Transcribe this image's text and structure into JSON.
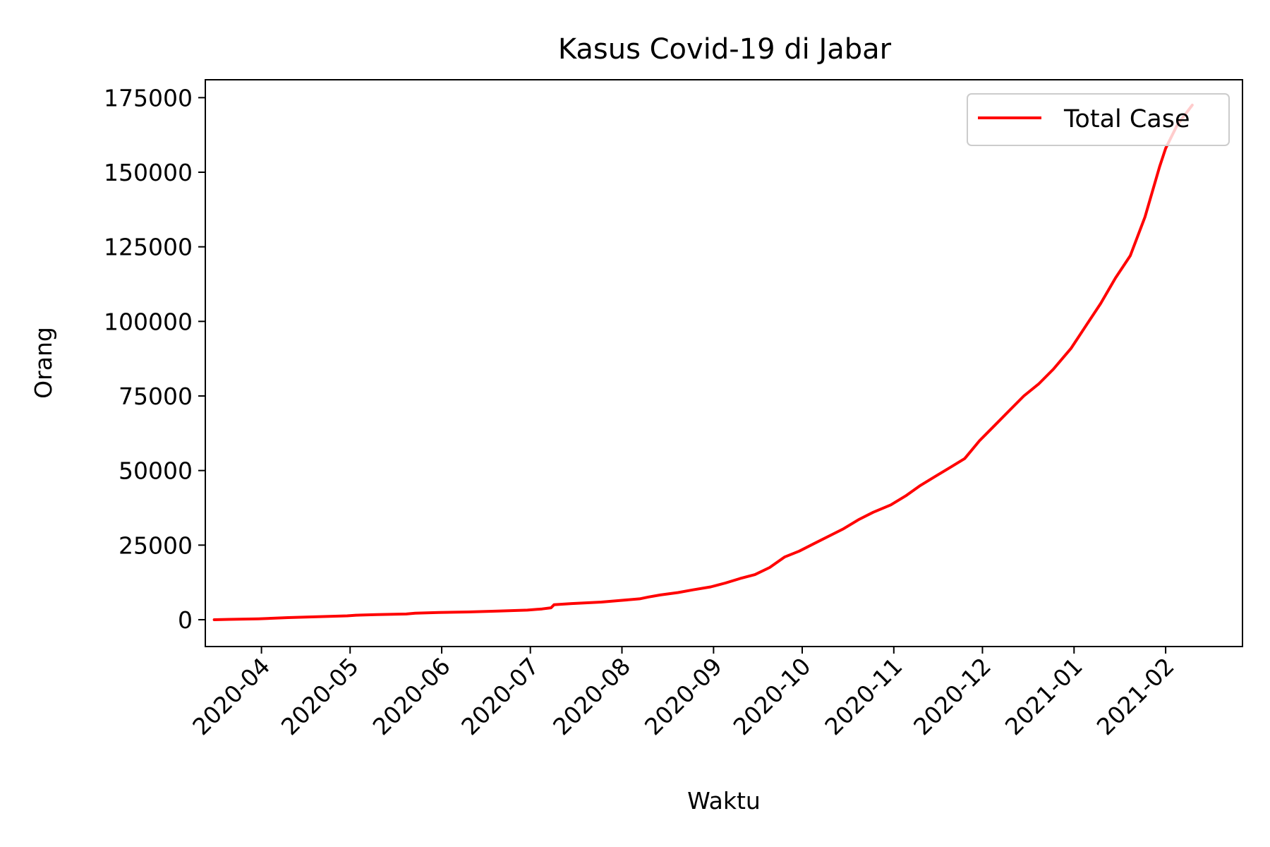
{
  "chart_data": {
    "type": "line",
    "title": "Kasus Covid-19 di Jabar",
    "xlabel": "Waktu",
    "ylabel": "Orang",
    "xlim": [
      "2020-03-13",
      "2021-02-27"
    ],
    "ylim": [
      -9000,
      181000
    ],
    "y_ticks": [
      0,
      25000,
      50000,
      75000,
      100000,
      125000,
      150000,
      175000
    ],
    "x_ticks": [
      "2020-04",
      "2020-05",
      "2020-06",
      "2020-07",
      "2020-08",
      "2020-09",
      "2020-10",
      "2020-11",
      "2020-12",
      "2021-01",
      "2021-02"
    ],
    "x_tick_dates": [
      "2020-04-01",
      "2020-05-01",
      "2020-06-01",
      "2020-07-01",
      "2020-08-01",
      "2020-09-01",
      "2020-10-01",
      "2020-11-01",
      "2020-12-01",
      "2021-01-01",
      "2021-02-01"
    ],
    "legend": {
      "position": "top-right",
      "entries": [
        "Total Case"
      ]
    },
    "grid": false,
    "series": [
      {
        "name": "Total Case",
        "color": "#ff0000",
        "x": [
          "2020-03-16",
          "2020-03-21",
          "2020-03-31",
          "2020-04-10",
          "2020-04-20",
          "2020-04-30",
          "2020-05-03",
          "2020-05-10",
          "2020-05-20",
          "2020-05-23",
          "2020-05-31",
          "2020-06-10",
          "2020-06-20",
          "2020-06-30",
          "2020-07-05",
          "2020-07-08",
          "2020-07-09",
          "2020-07-15",
          "2020-07-25",
          "2020-07-31",
          "2020-08-07",
          "2020-08-10",
          "2020-08-14",
          "2020-08-20",
          "2020-08-25",
          "2020-08-31",
          "2020-09-05",
          "2020-09-10",
          "2020-09-15",
          "2020-09-20",
          "2020-09-25",
          "2020-09-30",
          "2020-10-05",
          "2020-10-10",
          "2020-10-15",
          "2020-10-20",
          "2020-10-25",
          "2020-10-31",
          "2020-11-05",
          "2020-11-10",
          "2020-11-15",
          "2020-11-20",
          "2020-11-25",
          "2020-11-30",
          "2020-12-05",
          "2020-12-10",
          "2020-12-15",
          "2020-12-20",
          "2020-12-25",
          "2020-12-31",
          "2021-01-05",
          "2021-01-10",
          "2021-01-15",
          "2021-01-20",
          "2021-01-25",
          "2021-01-30",
          "2021-02-01",
          "2021-02-05",
          "2021-02-10"
        ],
        "y": [
          0,
          100,
          300,
          700,
          1000,
          1300,
          1500,
          1700,
          1900,
          2200,
          2400,
          2600,
          2900,
          3200,
          3600,
          4000,
          5000,
          5400,
          5900,
          6400,
          7000,
          7600,
          8300,
          9100,
          10000,
          11000,
          12300,
          13800,
          15100,
          17500,
          21000,
          23000,
          25500,
          28000,
          30500,
          33500,
          36000,
          38500,
          41500,
          45000,
          48000,
          51000,
          54000,
          60000,
          65000,
          70000,
          75000,
          79000,
          84000,
          91000,
          98500,
          106000,
          114500,
          122000,
          135000,
          152000,
          158000,
          166000,
          172500
        ]
      }
    ]
  }
}
